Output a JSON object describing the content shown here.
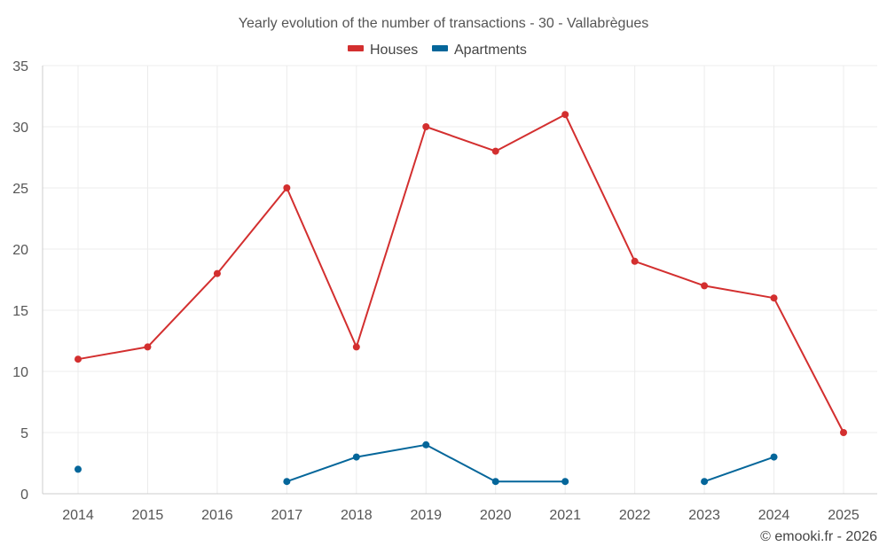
{
  "chart_data": {
    "type": "line",
    "title": "Yearly evolution of the number of transactions - 30 - Vallabrègues",
    "xlabel": "",
    "ylabel": "",
    "categories": [
      "2014",
      "2015",
      "2016",
      "2017",
      "2018",
      "2019",
      "2020",
      "2021",
      "2022",
      "2023",
      "2024",
      "2025"
    ],
    "ylim": [
      0,
      35
    ],
    "yticks": [
      0,
      5,
      10,
      15,
      20,
      25,
      30,
      35
    ],
    "grid": true,
    "legend_position": "top-center",
    "series": [
      {
        "name": "Houses",
        "color": "#d32f2f",
        "values": [
          11,
          12,
          18,
          25,
          12,
          30,
          28,
          31,
          19,
          17,
          16,
          5
        ]
      },
      {
        "name": "Apartments",
        "color": "#04669a",
        "values": [
          2,
          null,
          null,
          1,
          3,
          4,
          1,
          1,
          null,
          1,
          3,
          null
        ]
      }
    ]
  },
  "credit": "© emooki.fr - 2026"
}
